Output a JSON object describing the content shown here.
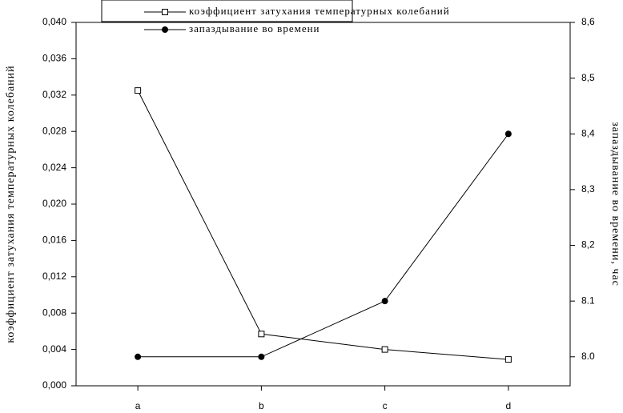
{
  "chart_data": {
    "type": "line",
    "categories": [
      "a",
      "b",
      "c",
      "d"
    ],
    "series": [
      {
        "name": "коэффициент затухания температурных колебаний",
        "color": "#000000",
        "marker": "square",
        "values": [
          0.0325,
          0.0057,
          0.004,
          0.0029
        ]
      },
      {
        "name": "запаздывание во времени",
        "color": "#000000",
        "marker": "circle",
        "axis": "y2",
        "values": [
          8.0,
          8.0,
          8.1,
          8.4
        ]
      }
    ],
    "ylabel": "коэффициент затухания температурных колебаний",
    "y2label": "запаздывание во времени, час",
    "ylim": [
      0,
      0.04
    ],
    "yticks": [
      {
        "value": 0,
        "label": "0,000"
      },
      {
        "value": 0.004,
        "label": "0,004"
      },
      {
        "value": 0.008,
        "label": "0,008"
      },
      {
        "value": 0.012,
        "label": "0,012"
      },
      {
        "value": 0.016,
        "label": "0,016"
      },
      {
        "value": 0.02,
        "label": "0,020"
      },
      {
        "value": 0.024,
        "label": "0,024"
      },
      {
        "value": 0.028,
        "label": "0,028"
      },
      {
        "value": 0.032,
        "label": "0,032"
      },
      {
        "value": 0.036,
        "label": "0,036"
      },
      {
        "value": 0.04,
        "label": "0,040"
      }
    ],
    "y2lim": [
      7.948,
      8.6
    ],
    "y2ticks": [
      {
        "value": 8.0,
        "label": "8.0"
      },
      {
        "value": 8.1,
        "label": "8.1"
      },
      {
        "value": 8.2,
        "label": "8,2"
      },
      {
        "value": 8.3,
        "label": "8,3"
      },
      {
        "value": 8.4,
        "label": "8,4"
      },
      {
        "value": 8.5,
        "label": "8,5"
      },
      {
        "value": 8.6,
        "label": "8,6"
      }
    ],
    "grid": false,
    "legend": "top"
  }
}
